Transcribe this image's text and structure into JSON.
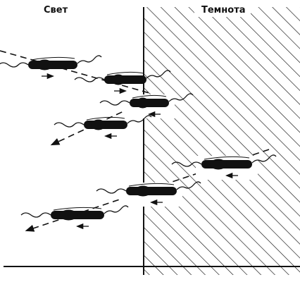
{
  "labels": {
    "light": "Свет",
    "dark": "Темнота"
  }
}
